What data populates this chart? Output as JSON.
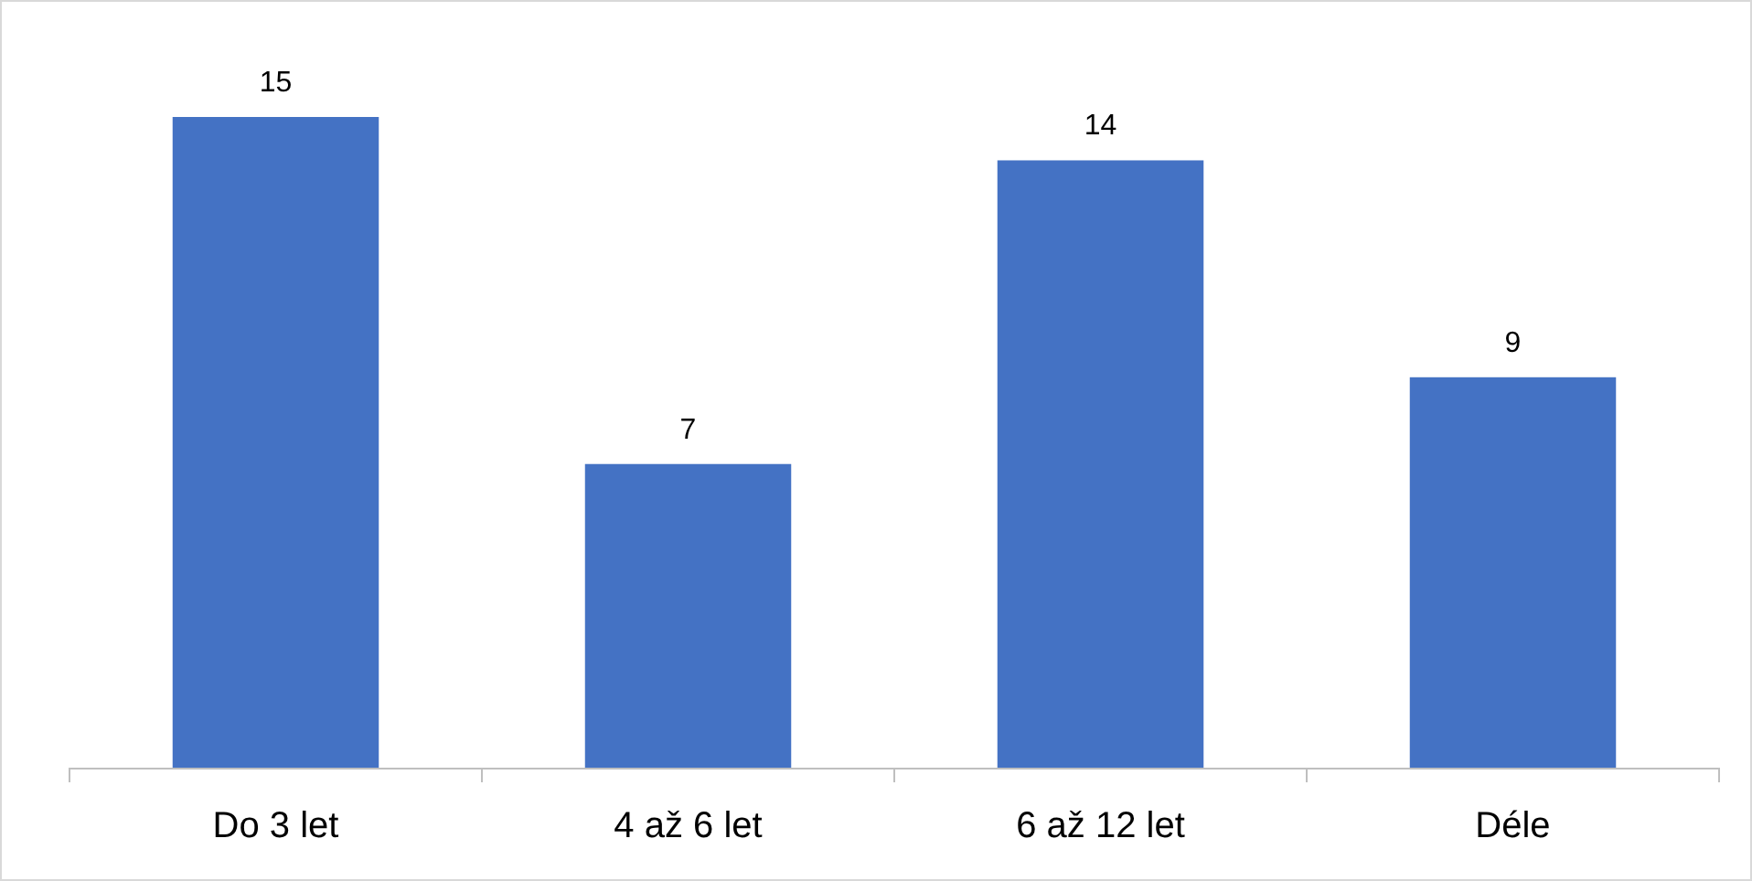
{
  "chart_data": {
    "type": "bar",
    "categories": [
      "Do 3 let",
      "4 až 6 let",
      "6 až 12 let",
      "Déle"
    ],
    "values": [
      15,
      7,
      14,
      9
    ],
    "color": "#4472c4",
    "data_labels": true
  }
}
